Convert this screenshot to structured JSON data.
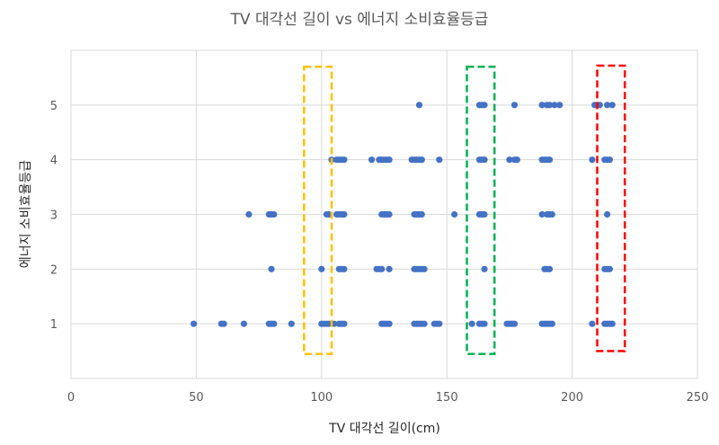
{
  "chart_data": {
    "type": "scatter",
    "title": "TV 대각선 길이 vs 에너지 소비효율등급",
    "xlabel": "TV 대각선 길이(cm)",
    "ylabel": "에너지 소비효율등급",
    "xlim": [
      0,
      250
    ],
    "ylim": [
      0,
      6
    ],
    "xticks": [
      0,
      50,
      100,
      150,
      200,
      250
    ],
    "yticks": [
      1,
      2,
      3,
      4,
      5
    ],
    "grid": true,
    "series": [
      {
        "color": "#4472c4",
        "points": [
          [
            49,
            1
          ],
          [
            60,
            1
          ],
          [
            61,
            1
          ],
          [
            69,
            1
          ],
          [
            79,
            1
          ],
          [
            80,
            1
          ],
          [
            81,
            1
          ],
          [
            88,
            1
          ],
          [
            100,
            1
          ],
          [
            101,
            1
          ],
          [
            102,
            1
          ],
          [
            103,
            1
          ],
          [
            105,
            1
          ],
          [
            107,
            1
          ],
          [
            108,
            1
          ],
          [
            109,
            1
          ],
          [
            124,
            1
          ],
          [
            125,
            1
          ],
          [
            126,
            1
          ],
          [
            127,
            1
          ],
          [
            137,
            1
          ],
          [
            138,
            1
          ],
          [
            139,
            1
          ],
          [
            140,
            1
          ],
          [
            141,
            1
          ],
          [
            145,
            1
          ],
          [
            146,
            1
          ],
          [
            147,
            1
          ],
          [
            160,
            1
          ],
          [
            163,
            1
          ],
          [
            164,
            1
          ],
          [
            165,
            1
          ],
          [
            174,
            1
          ],
          [
            175,
            1
          ],
          [
            176,
            1
          ],
          [
            177,
            1
          ],
          [
            188,
            1
          ],
          [
            189,
            1
          ],
          [
            190,
            1
          ],
          [
            191,
            1
          ],
          [
            192,
            1
          ],
          [
            208,
            1
          ],
          [
            213,
            1
          ],
          [
            214,
            1
          ],
          [
            215,
            1
          ],
          [
            216,
            1
          ],
          [
            80,
            2
          ],
          [
            100,
            2
          ],
          [
            107,
            2
          ],
          [
            108,
            2
          ],
          [
            109,
            2
          ],
          [
            122,
            2
          ],
          [
            123,
            2
          ],
          [
            124,
            2
          ],
          [
            127,
            2
          ],
          [
            137,
            2
          ],
          [
            138,
            2
          ],
          [
            139,
            2
          ],
          [
            140,
            2
          ],
          [
            141,
            2
          ],
          [
            165,
            2
          ],
          [
            189,
            2
          ],
          [
            190,
            2
          ],
          [
            191,
            2
          ],
          [
            213,
            2
          ],
          [
            214,
            2
          ],
          [
            215,
            2
          ],
          [
            71,
            3
          ],
          [
            79,
            3
          ],
          [
            80,
            3
          ],
          [
            81,
            3
          ],
          [
            102,
            3
          ],
          [
            103,
            3
          ],
          [
            106,
            3
          ],
          [
            107,
            3
          ],
          [
            108,
            3
          ],
          [
            109,
            3
          ],
          [
            124,
            3
          ],
          [
            125,
            3
          ],
          [
            126,
            3
          ],
          [
            127,
            3
          ],
          [
            137,
            3
          ],
          [
            138,
            3
          ],
          [
            139,
            3
          ],
          [
            140,
            3
          ],
          [
            153,
            3
          ],
          [
            163,
            3
          ],
          [
            164,
            3
          ],
          [
            165,
            3
          ],
          [
            188,
            3
          ],
          [
            190,
            3
          ],
          [
            191,
            3
          ],
          [
            192,
            3
          ],
          [
            214,
            3
          ],
          [
            104,
            4
          ],
          [
            106,
            4
          ],
          [
            107,
            4
          ],
          [
            108,
            4
          ],
          [
            109,
            4
          ],
          [
            120,
            4
          ],
          [
            123,
            4
          ],
          [
            124,
            4
          ],
          [
            125,
            4
          ],
          [
            126,
            4
          ],
          [
            127,
            4
          ],
          [
            136,
            4
          ],
          [
            137,
            4
          ],
          [
            138,
            4
          ],
          [
            139,
            4
          ],
          [
            140,
            4
          ],
          [
            147,
            4
          ],
          [
            163,
            4
          ],
          [
            164,
            4
          ],
          [
            165,
            4
          ],
          [
            175,
            4
          ],
          [
            177,
            4
          ],
          [
            178,
            4
          ],
          [
            188,
            4
          ],
          [
            189,
            4
          ],
          [
            190,
            4
          ],
          [
            191,
            4
          ],
          [
            208,
            4
          ],
          [
            213,
            4
          ],
          [
            214,
            4
          ],
          [
            215,
            4
          ],
          [
            139,
            5
          ],
          [
            163,
            5
          ],
          [
            164,
            5
          ],
          [
            165,
            5
          ],
          [
            177,
            5
          ],
          [
            188,
            5
          ],
          [
            190,
            5
          ],
          [
            191,
            5
          ],
          [
            193,
            5
          ],
          [
            195,
            5
          ],
          [
            209,
            5
          ],
          [
            211,
            5
          ],
          [
            214,
            5
          ],
          [
            216,
            5
          ]
        ]
      }
    ],
    "highlights": [
      {
        "color": "#ffc000",
        "x_range": [
          93,
          104
        ],
        "y_range": [
          0.45,
          5.7
        ]
      },
      {
        "color": "#00b050",
        "x_range": [
          158,
          169
        ],
        "y_range": [
          0.45,
          5.7
        ]
      },
      {
        "color": "#ff0000",
        "x_range": [
          210,
          221
        ],
        "y_range": [
          0.5,
          5.72
        ]
      }
    ]
  }
}
